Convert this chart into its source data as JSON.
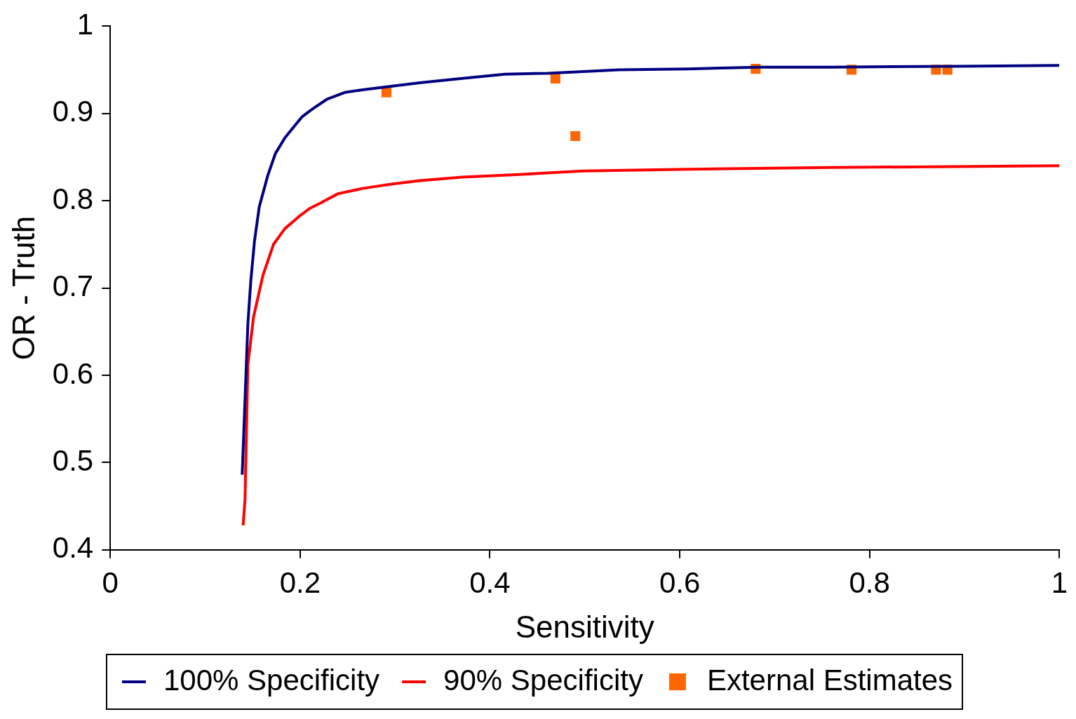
{
  "chart_data": {
    "type": "line",
    "xlabel": "Sensitivity",
    "ylabel": "OR - Truth",
    "xlim": [
      0,
      1
    ],
    "ylim": [
      0.4,
      1
    ],
    "xticks": [
      0,
      0.2,
      0.4,
      0.6,
      0.8,
      1
    ],
    "yticks": [
      0.4,
      0.5,
      0.6,
      0.7,
      0.8,
      0.9,
      1
    ],
    "grid": false,
    "legend": "bottom",
    "series": [
      {
        "name": "100% Specificity",
        "color": "#000080",
        "marker": "none",
        "x": [
          0.139,
          0.145,
          0.148,
          0.152,
          0.157,
          0.166,
          0.174,
          0.184,
          0.196,
          0.202,
          0.213,
          0.228,
          0.247,
          0.266,
          0.296,
          0.326,
          0.371,
          0.416,
          0.461,
          0.536,
          0.61,
          0.685,
          0.76,
          0.895,
          1
        ],
        "values": [
          0.486,
          0.659,
          0.707,
          0.754,
          0.793,
          0.829,
          0.854,
          0.872,
          0.888,
          0.896,
          0.905,
          0.916,
          0.924,
          0.927,
          0.931,
          0.935,
          0.94,
          0.945,
          0.946,
          0.95,
          0.951,
          0.953,
          0.953,
          0.954,
          0.955
        ]
      },
      {
        "name": "90% Specificity",
        "color": "#ff0000",
        "marker": "none",
        "x": [
          0.14,
          0.142,
          0.145,
          0.151,
          0.161,
          0.172,
          0.184,
          0.199,
          0.21,
          0.221,
          0.24,
          0.266,
          0.296,
          0.326,
          0.371,
          0.431,
          0.498,
          0.61,
          0.76,
          1
        ],
        "values": [
          0.428,
          0.458,
          0.612,
          0.667,
          0.715,
          0.75,
          0.768,
          0.782,
          0.791,
          0.797,
          0.808,
          0.814,
          0.819,
          0.823,
          0.827,
          0.83,
          0.834,
          0.836,
          0.838,
          0.84
        ]
      },
      {
        "name": "External Estimates",
        "type": "scatter",
        "color": "#ff6600",
        "marker": "square",
        "x": [
          0.291,
          0.469,
          0.49,
          0.68,
          0.781,
          0.87,
          0.882
        ],
        "values": [
          0.924,
          0.94,
          0.874,
          0.951,
          0.95,
          0.95,
          0.95
        ]
      }
    ]
  }
}
